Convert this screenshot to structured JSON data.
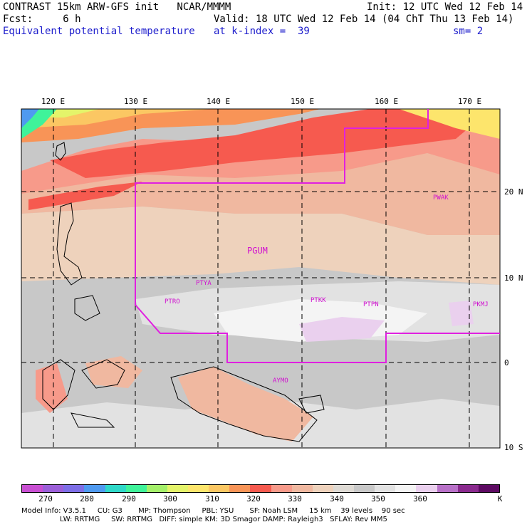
{
  "header": {
    "title": "CONTRAST 15km ARW-GFS init   NCAR/MMMM",
    "init": "Init: 12 UTC Wed 12 Feb 14",
    "fcst": "Fcst:     6 h",
    "valid": "Valid: 18 UTC Wed 12 Feb 14 (04 ChT Thu 13 Feb 14)",
    "field": "Equivalent potential temperature",
    "level": "at k-index =  39",
    "smoothing": "sm= 2"
  },
  "map": {
    "lon_labels": [
      "120 E",
      "130 E",
      "140 E",
      "150 E",
      "160 E",
      "170 E"
    ],
    "lat_labels": [
      "20 N",
      "10 N",
      "0",
      "10 S"
    ],
    "stations": [
      "PGUM",
      "PTYA",
      "PTRO",
      "PTKK",
      "PTPN",
      "PKMJ",
      "PWAK",
      "AYMO"
    ],
    "boundary_color": "#e020e0"
  },
  "colorbar": {
    "labels": [
      "270",
      "280",
      "290",
      "300",
      "310",
      "320",
      "330",
      "340",
      "350",
      "360"
    ],
    "unit": "K",
    "colors": [
      "#c84fd2",
      "#9b5fd8",
      "#7d6ee6",
      "#4f9af0",
      "#2fd8c8",
      "#3ff39a",
      "#a4f06a",
      "#e4f46a",
      "#fde56c",
      "#fbc763",
      "#f89457",
      "#f65a4f",
      "#f79a8a",
      "#f0b8a0",
      "#eed2bc",
      "#dedad4",
      "#c8c8c8",
      "#e2e2e2",
      "#f4f4f4",
      "#ead0ee",
      "#b871c8",
      "#8a2a8e",
      "#5d0a62"
    ]
  },
  "footer": {
    "line1": "Model Info: V3.5.1     CU: G3       MP: Thompson     PBL: YSU       SF: Noah LSM     15 km    39 levels    90 sec",
    "line2": "                 LW: RRTMG     SW: RRTMG   DIFF: simple KM: 3D Smagor DAMP: Rayleigh3   SFLAY: Rev MM5"
  }
}
